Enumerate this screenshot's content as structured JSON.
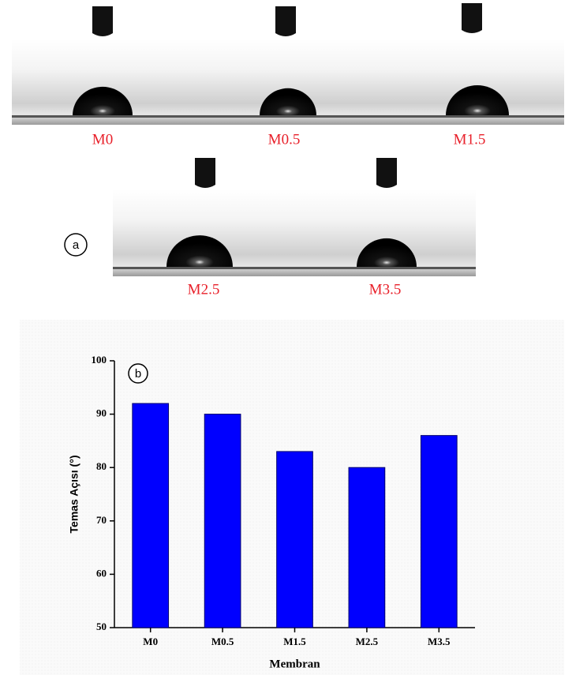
{
  "panel_a": {
    "label": "a",
    "photos": [
      "M0",
      "M0.5",
      "M1.5",
      "M2.5",
      "M3.5"
    ]
  },
  "chart_data": {
    "type": "bar",
    "panel_label": "b",
    "x_label": "Membran",
    "y_label": "Temas Açısı (°)",
    "categories": [
      "M0",
      "M0.5",
      "M1.5",
      "M2.5",
      "M3.5"
    ],
    "values": [
      92,
      90,
      83,
      80,
      86
    ],
    "color": "#0000ff",
    "ylim": [
      50,
      100
    ],
    "yticks": [
      50,
      60,
      70,
      80,
      90,
      100
    ]
  }
}
